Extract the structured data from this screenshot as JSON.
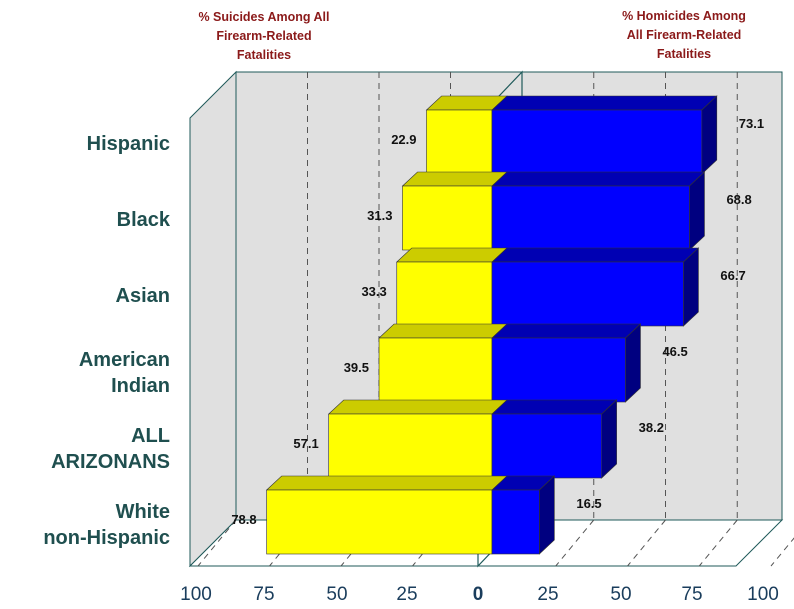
{
  "chart_data": {
    "type": "bar",
    "orientation": "horizontal-butterfly",
    "left_header": [
      "% Suicides Among All",
      "Firearm-Related",
      "Fatalities"
    ],
    "right_header": [
      "% Homicides Among",
      "All Firearm-Related",
      "Fatalities"
    ],
    "categories": [
      [
        "Hispanic"
      ],
      [
        "Black"
      ],
      [
        "Asian"
      ],
      [
        "American",
        "Indian"
      ],
      [
        "ALL",
        "ARIZONANS"
      ],
      [
        "White",
        "non-Hispanic"
      ]
    ],
    "series": [
      {
        "side": "left",
        "values": [
          22.9,
          31.3,
          33.3,
          39.5,
          57.1,
          78.8
        ]
      },
      {
        "side": "right",
        "values": [
          73.1,
          68.8,
          66.7,
          46.5,
          38.2,
          16.5
        ]
      }
    ],
    "left_ticks": [
      "100",
      "75",
      "50",
      "25"
    ],
    "zero_tick": "0",
    "right_ticks": [
      "25",
      "50",
      "75",
      "100"
    ],
    "xlim": [
      0,
      100
    ],
    "grid": true,
    "colors": {
      "left_front": "#ffff00",
      "left_top": "#cccc00",
      "left_side": "#b3b300",
      "right_front": "#0000ff",
      "right_top": "#0000b3",
      "right_side": "#000080",
      "wall": "#e0e0e0",
      "floor": "#ffffff",
      "axis_line": "#1f5a5a",
      "header_text": "#8b1a1a",
      "category_text": "#1f4f4f"
    }
  }
}
